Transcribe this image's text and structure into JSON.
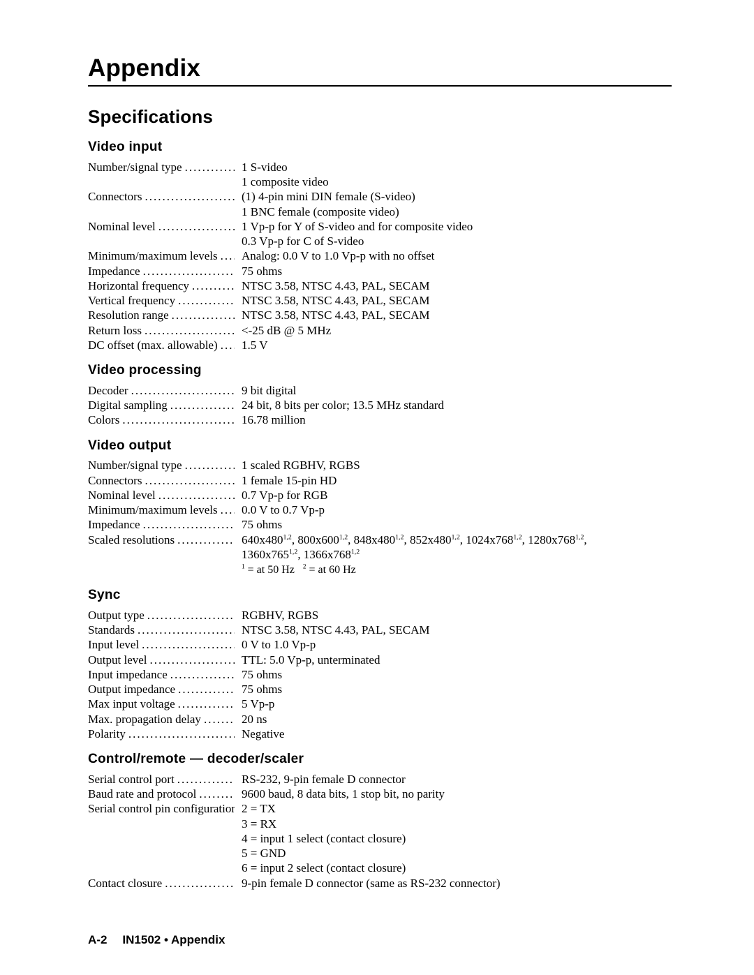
{
  "page_title": "Appendix",
  "section_title": "Specifications",
  "footer_page": "A-2",
  "footer_text": "IN1502 • Appendix",
  "colors": {
    "text": "#000000",
    "background": "#ffffff",
    "rule": "#000000"
  },
  "groups": [
    {
      "heading": "Video  input",
      "rows": [
        {
          "label": "Number/signal type",
          "values": [
            "1 S-video",
            "1 composite video"
          ]
        },
        {
          "label": "Connectors",
          "values": [
            "(1) 4-pin mini DIN female (S-video)",
            "1 BNC female (composite video)"
          ]
        },
        {
          "label": "Nominal level",
          "values": [
            "1 Vp-p for Y of S-video and for composite video",
            "0.3 Vp-p for C of S-video"
          ]
        },
        {
          "label": "Minimum/maximum levels",
          "values": [
            "Analog: 0.0 V to 1.0 Vp-p with no offset"
          ]
        },
        {
          "label": "Impedance",
          "values": [
            "75 ohms"
          ]
        },
        {
          "label": "Horizontal frequency",
          "values": [
            "NTSC 3.58, NTSC 4.43, PAL, SECAM"
          ]
        },
        {
          "label": "Vertical frequency",
          "values": [
            "NTSC 3.58, NTSC 4.43, PAL, SECAM"
          ]
        },
        {
          "label": "Resolution range",
          "values": [
            "NTSC 3.58, NTSC 4.43, PAL, SECAM"
          ]
        },
        {
          "label": "Return loss",
          "values": [
            "<-25 dB @ 5 MHz"
          ]
        },
        {
          "label": "DC offset (max. allowable)",
          "values": [
            "1.5 V"
          ]
        }
      ]
    },
    {
      "heading": "Video  processing",
      "rows": [
        {
          "label": "Decoder",
          "values": [
            "9 bit digital"
          ]
        },
        {
          "label": "Digital sampling",
          "values": [
            "24 bit, 8 bits per color; 13.5 MHz standard"
          ]
        },
        {
          "label": "Colors",
          "values": [
            "16.78 million"
          ]
        }
      ]
    },
    {
      "heading": "Video  output",
      "rows": [
        {
          "label": "Number/signal type",
          "values": [
            "1 scaled RGBHV, RGBS"
          ]
        },
        {
          "label": "Connectors",
          "values": [
            "1 female 15-pin HD"
          ]
        },
        {
          "label": "Nominal level",
          "values": [
            "0.7 Vp-p for RGB"
          ]
        },
        {
          "label": "Minimum/maximum levels",
          "values": [
            "0.0 V to 0.7 Vp-p"
          ]
        },
        {
          "label": "Impedance",
          "values": [
            "75 ohms"
          ]
        },
        {
          "label": "Scaled resolutions",
          "values_html": [
            "640x480<sup>1,2</sup>, 800x600<sup>1,2</sup>, 848x480<sup>1,2</sup>, 852x480<sup>1,2</sup>, 1024x768<sup>1,2</sup>, 1280x768<sup>1,2</sup>,",
            "1360x765<sup>1,2</sup>,  1366x768<sup>1,2</sup>"
          ]
        }
      ],
      "footnote_html": "<sup>1</sup> = at 50 Hz&nbsp;&nbsp;&nbsp;<sup>2</sup> = at 60 Hz"
    },
    {
      "heading": "Sync",
      "rows": [
        {
          "label": "Output type",
          "values": [
            "RGBHV, RGBS"
          ]
        },
        {
          "label": "Standards",
          "values": [
            "NTSC 3.58, NTSC 4.43, PAL, SECAM"
          ]
        },
        {
          "label": "Input level",
          "values": [
            "0 V to 1.0 Vp-p"
          ]
        },
        {
          "label": "Output level",
          "values": [
            "TTL: 5.0 Vp-p, unterminated"
          ]
        },
        {
          "label": "Input impedance",
          "values": [
            "75 ohms"
          ]
        },
        {
          "label": "Output impedance",
          "values": [
            "75 ohms"
          ]
        },
        {
          "label": "Max input voltage",
          "values": [
            "5 Vp-p"
          ]
        },
        {
          "label": "Max. propagation delay",
          "values": [
            "20 ns"
          ]
        },
        {
          "label": "Polarity",
          "values": [
            "Negative"
          ]
        }
      ]
    },
    {
      "heading": "Control/remote  —  decoder/scaler",
      "rows": [
        {
          "label": "Serial control port",
          "values": [
            "RS-232, 9-pin female D connector"
          ]
        },
        {
          "label": "Baud rate and protocol",
          "values": [
            "9600 baud, 8 data bits, 1 stop bit, no parity"
          ]
        },
        {
          "label": "Serial control pin configurations",
          "no_dots": true,
          "values": [
            "2 = TX",
            "3 = RX",
            "4 = input 1 select (contact closure)",
            "5 = GND",
            "6 = input 2 select (contact closure)"
          ]
        },
        {
          "label": "Contact closure",
          "values": [
            "9-pin female D connector (same as RS-232 connector)"
          ]
        }
      ]
    }
  ]
}
